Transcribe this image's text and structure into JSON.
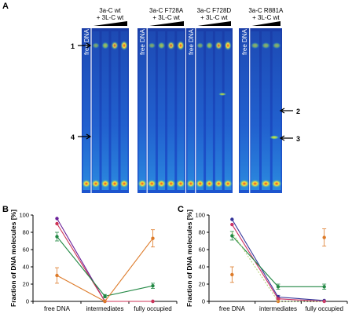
{
  "panel_a": {
    "letter": "A",
    "gels": [
      {
        "label_free": "free DNA",
        "label_title": "3a-C wt",
        "label_sub": "+ 3L-C wt"
      },
      {
        "label_free": "free DNA",
        "label_title": "3a-C F728A",
        "label_sub": "+ 3L-C wt"
      },
      {
        "label_free": "free DNA",
        "label_title": "3a-C F728D",
        "label_sub": "+ 3L-C wt"
      },
      {
        "label_free": "free DNA",
        "label_title": "3a-C R881A",
        "label_sub": "+ 3L-C wt"
      }
    ],
    "markers": [
      "1",
      "2",
      "3",
      "4"
    ],
    "colors": {
      "gel_bg": "#1b3fae",
      "gel_light": "#2f7fe0",
      "band_green": "#9ee04a",
      "band_yellow": "#f5e23a",
      "band_red": "#e8402a"
    }
  },
  "chart_data": [
    {
      "type": "line",
      "panel": "B",
      "categories": [
        "free DNA",
        "intermediates",
        "fully occupied"
      ],
      "ylabel": "Fraction of DNA molecules [%]",
      "ylim": [
        0,
        100
      ],
      "yticks": [
        0,
        20,
        40,
        60,
        80,
        100
      ],
      "grid": false,
      "series": [
        {
          "color": "#6a1f99",
          "values": [
            96,
            0,
            0
          ],
          "errors": [
            0,
            0,
            0
          ]
        },
        {
          "color": "#cc3355",
          "values": [
            90,
            0,
            0
          ],
          "errors": [
            0,
            0,
            0
          ]
        },
        {
          "color": "#228844",
          "values": [
            75,
            6,
            18
          ],
          "errors": [
            5,
            2,
            3
          ]
        },
        {
          "color": "#dd7a28",
          "values": [
            30,
            0,
            73
          ],
          "errors": [
            9,
            0,
            10
          ]
        }
      ]
    },
    {
      "type": "line",
      "panel": "C",
      "categories": [
        "free DNA",
        "intermediates",
        "fully occupied"
      ],
      "ylabel": "Fraction of DNA molecules [%]",
      "ylim": [
        0,
        100
      ],
      "yticks": [
        0,
        20,
        40,
        60,
        80,
        100
      ],
      "grid": false,
      "series": [
        {
          "color": "#333399",
          "values": [
            95,
            5,
            1
          ],
          "errors": [
            0,
            2,
            0
          ]
        },
        {
          "color": "#cc3366",
          "values": [
            89,
            3,
            0
          ],
          "errors": [
            0,
            1,
            0
          ]
        },
        {
          "color": "#228844",
          "values": [
            76,
            17,
            17
          ],
          "errors": [
            5,
            3,
            3
          ]
        },
        {
          "color": "#dd7a28",
          "values": [
            31,
            0,
            74
          ],
          "errors": [
            9,
            0,
            10
          ],
          "markers_only": true
        },
        {
          "color": "#b5d37a",
          "values": [
            80,
            0,
            0
          ],
          "errors": [
            0,
            0,
            0
          ],
          "dashed": true,
          "no_markers": true
        }
      ]
    }
  ]
}
